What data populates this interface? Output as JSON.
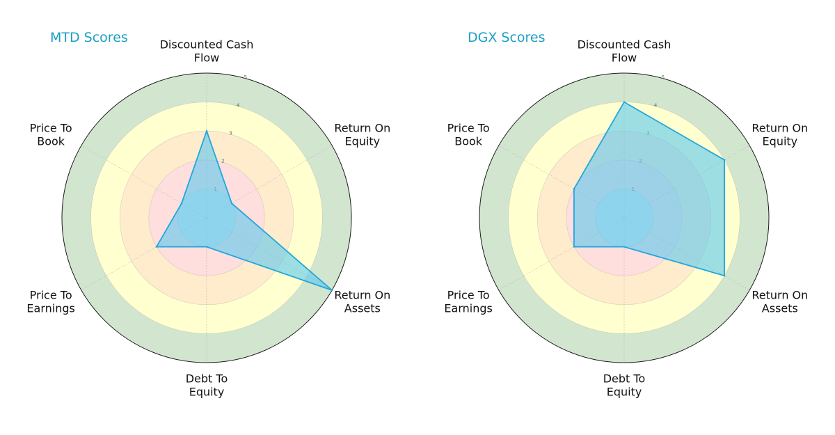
{
  "colors": {
    "title": "#1a9fc4",
    "band_0_1": "#dce6ec",
    "band_1_2": "#ffdede",
    "band_2_3": "#ffeccc",
    "band_3_4": "#ffffd0",
    "band_4_5": "#d2e6cf",
    "series_fill": "#5bc8ee",
    "series_line": "#1fa7dd",
    "grid": "#aaaaaa",
    "outer_ring": "#1a1a1a"
  },
  "chart_data": [
    {
      "type": "radar",
      "title": "MTD Scores",
      "axes": [
        [
          "Discounted Cash",
          "Flow"
        ],
        [
          "Return On",
          "Equity"
        ],
        [
          "Return On",
          "Assets"
        ],
        [
          "Debt To",
          "Equity"
        ],
        [
          "Price To",
          "Earnings"
        ],
        [
          "Price To",
          "Book"
        ]
      ],
      "radial_ticks": [
        "1",
        "2",
        "3",
        "4",
        "5"
      ],
      "rlim": [
        0,
        5
      ],
      "values": [
        3,
        1,
        5,
        1,
        2,
        1
      ],
      "grid": true
    },
    {
      "type": "radar",
      "title": "DGX Scores",
      "axes": [
        [
          "Discounted Cash",
          "Flow"
        ],
        [
          "Return On",
          "Equity"
        ],
        [
          "Return On",
          "Assets"
        ],
        [
          "Debt To",
          "Equity"
        ],
        [
          "Price To",
          "Earnings"
        ],
        [
          "Price To",
          "Book"
        ]
      ],
      "radial_ticks": [
        "1",
        "2",
        "3",
        "4",
        "5"
      ],
      "rlim": [
        0,
        5
      ],
      "values": [
        4,
        4,
        4,
        1,
        2,
        2
      ],
      "grid": true
    }
  ]
}
